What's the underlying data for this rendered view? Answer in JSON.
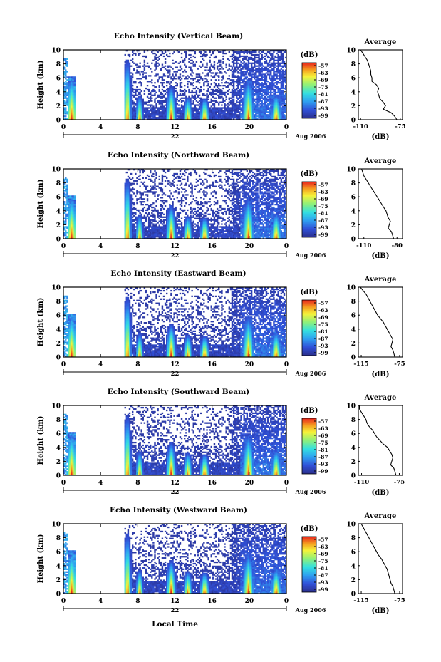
{
  "figure": {
    "date_label": "Aug 2006",
    "day_label": "22",
    "x_axis_title": "Local Time",
    "colorbar_unit": "(dB)",
    "colorbar_ticks": [
      "-57",
      "-63",
      "-69",
      "-75",
      "-81",
      "-87",
      "-93",
      "-99"
    ],
    "average_title": "Average",
    "average_unit": "(dB)"
  },
  "chart_data": [
    {
      "type": "heatmap",
      "title": "Echo Intensity (Vertical Beam)",
      "ylabel": "Height (km)",
      "xlabel": "Local Time",
      "x_ticks": [
        "0",
        "4",
        "8",
        "12",
        "16",
        "20",
        "0"
      ],
      "xlim": [
        0,
        24
      ],
      "ylim": [
        0,
        10
      ],
      "y_ticks": [
        "0",
        "2",
        "4",
        "6",
        "8",
        "10"
      ],
      "colorbar": {
        "unit": "(dB)",
        "ticks": [
          -57,
          -63,
          -69,
          -75,
          -81,
          -87,
          -93,
          -99
        ]
      },
      "average_profile": {
        "title": "Average",
        "xlabel": "(dB)",
        "x_ticks": [
          "-110",
          "-75"
        ],
        "xlim": [
          -112,
          -73
        ],
        "y_ticks": [
          "0",
          "2",
          "4",
          "6",
          "8",
          "10"
        ],
        "height_km": [
          0,
          0.5,
          1,
          1.5,
          2,
          2.5,
          3,
          3.5,
          4,
          4.5,
          5,
          5.5,
          6,
          6.5,
          7,
          7.5,
          8,
          8.5,
          9,
          9.5,
          10
        ],
        "values_db": [
          -78,
          -80,
          -83,
          -90,
          -88,
          -90,
          -93,
          -94,
          -95,
          -94,
          -96,
          -100,
          -100,
          -101,
          -101,
          -102,
          -103,
          -104,
          -106,
          -108,
          -110
        ]
      }
    },
    {
      "type": "heatmap",
      "title": "Echo Intensity (Northward Beam)",
      "ylabel": "Height (km)",
      "xlabel": "Local Time",
      "x_ticks": [
        "0",
        "4",
        "8",
        "12",
        "16",
        "20",
        "0"
      ],
      "xlim": [
        0,
        24
      ],
      "ylim": [
        0,
        10
      ],
      "y_ticks": [
        "0",
        "2",
        "4",
        "6",
        "8",
        "10"
      ],
      "colorbar": {
        "unit": "(dB)",
        "ticks": [
          -57,
          -63,
          -69,
          -75,
          -81,
          -87,
          -93,
          -99
        ]
      },
      "average_profile": {
        "title": "Average",
        "xlabel": "(dB)",
        "x_ticks": [
          "-110",
          "-80"
        ],
        "xlim": [
          -115,
          -75
        ],
        "y_ticks": [
          "0",
          "2",
          "4",
          "6",
          "8",
          "10"
        ],
        "height_km": [
          0,
          0.5,
          1,
          1.5,
          2,
          2.5,
          3,
          3.5,
          4,
          4.5,
          5,
          5.5,
          6,
          6.5,
          7,
          7.5,
          8,
          8.5,
          9,
          9.5,
          10
        ],
        "values_db": [
          -83,
          -84,
          -85,
          -88,
          -87,
          -86,
          -88,
          -89,
          -90,
          -92,
          -94,
          -96,
          -98,
          -100,
          -102,
          -104,
          -106,
          -108,
          -110,
          -111,
          -112
        ]
      }
    },
    {
      "type": "heatmap",
      "title": "Echo Intensity (Eastward Beam)",
      "ylabel": "Height (km)",
      "xlabel": "Local Time",
      "x_ticks": [
        "0",
        "4",
        "8",
        "12",
        "16",
        "20",
        "0"
      ],
      "xlim": [
        0,
        24
      ],
      "ylim": [
        0,
        10
      ],
      "y_ticks": [
        "0",
        "2",
        "4",
        "6",
        "8",
        "10"
      ],
      "colorbar": {
        "unit": "(dB)",
        "ticks": [
          -57,
          -63,
          -69,
          -75,
          -81,
          -87,
          -93,
          -99
        ]
      },
      "average_profile": {
        "title": "Average",
        "xlabel": "(dB)",
        "x_ticks": [
          "-115",
          "-75"
        ],
        "xlim": [
          -118,
          -72
        ],
        "y_ticks": [
          "0",
          "2",
          "4",
          "6",
          "8",
          "10"
        ],
        "height_km": [
          0,
          0.5,
          1,
          1.5,
          2,
          2.5,
          3,
          3.5,
          4,
          4.5,
          5,
          5.5,
          6,
          6.5,
          7,
          7.5,
          8,
          8.5,
          9,
          9.5,
          10
        ],
        "values_db": [
          -80,
          -81,
          -82,
          -84,
          -83,
          -82,
          -84,
          -86,
          -88,
          -90,
          -92,
          -95,
          -98,
          -100,
          -102,
          -104,
          -106,
          -108,
          -110,
          -113,
          -116
        ]
      }
    },
    {
      "type": "heatmap",
      "title": "Echo Intensity (Southward Beam)",
      "ylabel": "Height (km)",
      "xlabel": "Local Time",
      "x_ticks": [
        "0",
        "4",
        "8",
        "12",
        "16",
        "20",
        "0"
      ],
      "xlim": [
        0,
        24
      ],
      "ylim": [
        0,
        10
      ],
      "y_ticks": [
        "0",
        "2",
        "4",
        "6",
        "8",
        "10"
      ],
      "colorbar": {
        "unit": "(dB)",
        "ticks": [
          -57,
          -63,
          -69,
          -75,
          -81,
          -87,
          -93,
          -99
        ]
      },
      "average_profile": {
        "title": "Average",
        "xlabel": "(dB)",
        "x_ticks": [
          "-110",
          "-75"
        ],
        "xlim": [
          -113,
          -72
        ],
        "y_ticks": [
          "0",
          "2",
          "4",
          "6",
          "8",
          "10"
        ],
        "height_km": [
          0,
          0.5,
          1,
          1.5,
          2,
          2.5,
          3,
          3.5,
          4,
          4.5,
          5,
          5.5,
          6,
          6.5,
          7,
          7.5,
          8,
          8.5,
          9,
          9.5,
          10
        ],
        "values_db": [
          -78,
          -79,
          -80,
          -83,
          -82,
          -81,
          -82,
          -84,
          -86,
          -90,
          -93,
          -96,
          -98,
          -100,
          -103,
          -105,
          -106,
          -108,
          -110,
          -112,
          -112
        ]
      }
    },
    {
      "type": "heatmap",
      "title": "Echo Intensity (Westward Beam)",
      "ylabel": "Height (km)",
      "xlabel": "Local Time",
      "x_ticks": [
        "0",
        "4",
        "8",
        "12",
        "16",
        "20",
        "0"
      ],
      "xlim": [
        0,
        24
      ],
      "ylim": [
        0,
        10
      ],
      "y_ticks": [
        "0",
        "2",
        "4",
        "6",
        "8",
        "10"
      ],
      "colorbar": {
        "unit": "(dB)",
        "ticks": [
          -57,
          -63,
          -69,
          -75,
          -81,
          -87,
          -93,
          -99
        ]
      },
      "average_profile": {
        "title": "Average",
        "xlabel": "(dB)",
        "x_ticks": [
          "-115",
          "-75"
        ],
        "xlim": [
          -118,
          -72
        ],
        "y_ticks": [
          "0",
          "2",
          "4",
          "6",
          "8",
          "10"
        ],
        "height_km": [
          0,
          0.5,
          1,
          1.5,
          2,
          2.5,
          3,
          3.5,
          4,
          4.5,
          5,
          5.5,
          6,
          6.5,
          7,
          7.5,
          8,
          8.5,
          9,
          9.5,
          10
        ],
        "values_db": [
          -80,
          -81,
          -82,
          -84,
          -85,
          -86,
          -87,
          -88,
          -90,
          -92,
          -94,
          -97,
          -99,
          -101,
          -103,
          -105,
          -107,
          -109,
          -111,
          -113,
          -115
        ]
      }
    }
  ]
}
